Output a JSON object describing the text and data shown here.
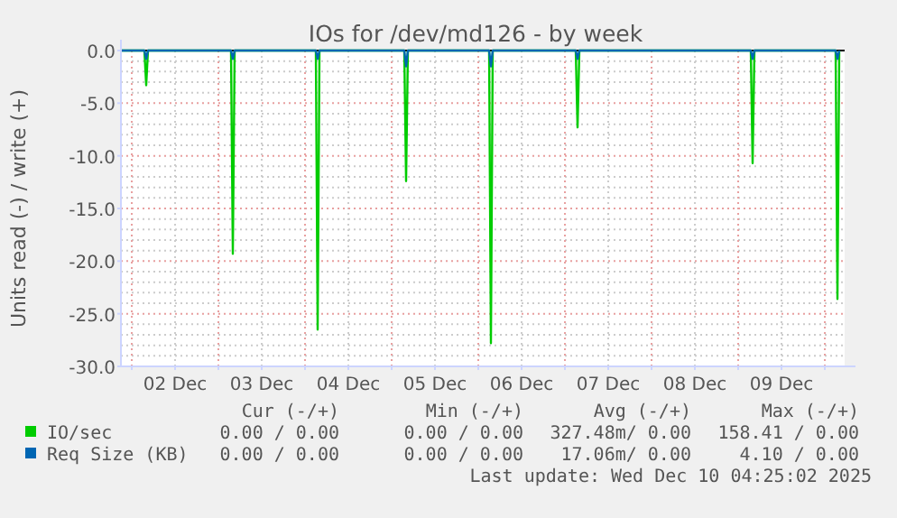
{
  "chart_data": {
    "type": "line",
    "title": "IOs for /dev/md126 - by week",
    "ylabel": "Units read (-) / write (+)",
    "xlim": [
      "2025-12-01T21:00",
      "2025-12-10T05:30"
    ],
    "xticks": [
      {
        "value": "2025-12-02T00:00",
        "label": null
      },
      {
        "value": "2025-12-02T12:00",
        "label": "02 Dec"
      },
      {
        "value": "2025-12-03T00:00",
        "label": null
      },
      {
        "value": "2025-12-03T12:00",
        "label": "03 Dec"
      },
      {
        "value": "2025-12-04T00:00",
        "label": null
      },
      {
        "value": "2025-12-04T12:00",
        "label": "04 Dec"
      },
      {
        "value": "2025-12-05T00:00",
        "label": null
      },
      {
        "value": "2025-12-05T12:00",
        "label": "05 Dec"
      },
      {
        "value": "2025-12-06T00:00",
        "label": null
      },
      {
        "value": "2025-12-06T12:00",
        "label": "06 Dec"
      },
      {
        "value": "2025-12-07T00:00",
        "label": null
      },
      {
        "value": "2025-12-07T12:00",
        "label": "07 Dec"
      },
      {
        "value": "2025-12-08T00:00",
        "label": null
      },
      {
        "value": "2025-12-08T12:00",
        "label": "08 Dec"
      },
      {
        "value": "2025-12-09T00:00",
        "label": null
      },
      {
        "value": "2025-12-09T12:00",
        "label": "09 Dec"
      },
      {
        "value": "2025-12-10T00:00",
        "label": null
      }
    ],
    "ylim": [
      -30,
      0
    ],
    "yticks": [
      {
        "value": -30,
        "label": "-30.0"
      },
      {
        "value": -25,
        "label": "-25.0"
      },
      {
        "value": -20,
        "label": "-20.0"
      },
      {
        "value": -15,
        "label": "-15.0"
      },
      {
        "value": -10,
        "label": "-10.0"
      },
      {
        "value": -5,
        "label": "-5.0"
      },
      {
        "value": 0,
        "label": "0.0"
      }
    ],
    "grid": true,
    "legend": "bottom",
    "line_style": "solid",
    "ref_lines": [
      {
        "axis": "y",
        "value": 0,
        "color": "#000000"
      }
    ],
    "series": [
      {
        "name": "IO/sec",
        "color": "#00cc00",
        "x": [
          "2025-12-01T21:00",
          "2025-12-02T03:30",
          "2025-12-02T04:00",
          "2025-12-02T04:30",
          "2025-12-03T03:30",
          "2025-12-03T04:00",
          "2025-12-03T04:30",
          "2025-12-04T03:00",
          "2025-12-04T03:30",
          "2025-12-04T04:00",
          "2025-12-05T03:30",
          "2025-12-05T04:00",
          "2025-12-05T04:30",
          "2025-12-06T03:00",
          "2025-12-06T03:30",
          "2025-12-06T04:00",
          "2025-12-07T03:00",
          "2025-12-07T03:30",
          "2025-12-07T04:00",
          "2025-12-09T03:30",
          "2025-12-09T04:00",
          "2025-12-09T04:30",
          "2025-12-10T03:00",
          "2025-12-10T03:30",
          "2025-12-10T04:00"
        ],
        "values": [
          0,
          0,
          -3.3,
          0,
          0,
          -19.3,
          0,
          0,
          -26.5,
          0,
          0,
          -12.4,
          0,
          0,
          -27.8,
          0,
          0,
          -7.3,
          0,
          0,
          -10.7,
          0,
          0,
          -23.6,
          0
        ]
      },
      {
        "name": "Req Size (KB)",
        "color": "#0066b3",
        "x": [
          "2025-12-01T21:00",
          "2025-12-02T03:30",
          "2025-12-02T04:00",
          "2025-12-02T04:30",
          "2025-12-03T03:30",
          "2025-12-03T04:00",
          "2025-12-03T04:30",
          "2025-12-04T03:00",
          "2025-12-04T03:30",
          "2025-12-04T04:00",
          "2025-12-05T03:30",
          "2025-12-05T04:00",
          "2025-12-05T04:30",
          "2025-12-06T03:00",
          "2025-12-06T03:30",
          "2025-12-06T04:00",
          "2025-12-07T03:00",
          "2025-12-07T03:30",
          "2025-12-07T04:00",
          "2025-12-09T03:30",
          "2025-12-09T04:00",
          "2025-12-09T04:30",
          "2025-12-10T03:00",
          "2025-12-10T03:30",
          "2025-12-10T04:00"
        ],
        "values": [
          0,
          0,
          -0.8,
          0,
          0,
          -0.8,
          0,
          0,
          -0.8,
          0,
          0,
          -1.5,
          0,
          0,
          -1.5,
          0,
          0,
          -0.8,
          0,
          0,
          -0.8,
          0,
          0,
          -0.8,
          0
        ]
      }
    ],
    "annotations": [
      "Cur (-/+)",
      "Min (-/+)",
      "Avg (-/+)",
      "Max (-/+)",
      "0.00 / 0.00",
      "0.00 / 0.00",
      "327.48m/ 0.00",
      "158.41 / 0.00",
      "0.00 / 0.00",
      "0.00 / 0.00",
      "17.06m/ 0.00",
      "4.10 / 0.00",
      "Last update: Wed Dec 10 04:25:02 2025"
    ]
  }
}
